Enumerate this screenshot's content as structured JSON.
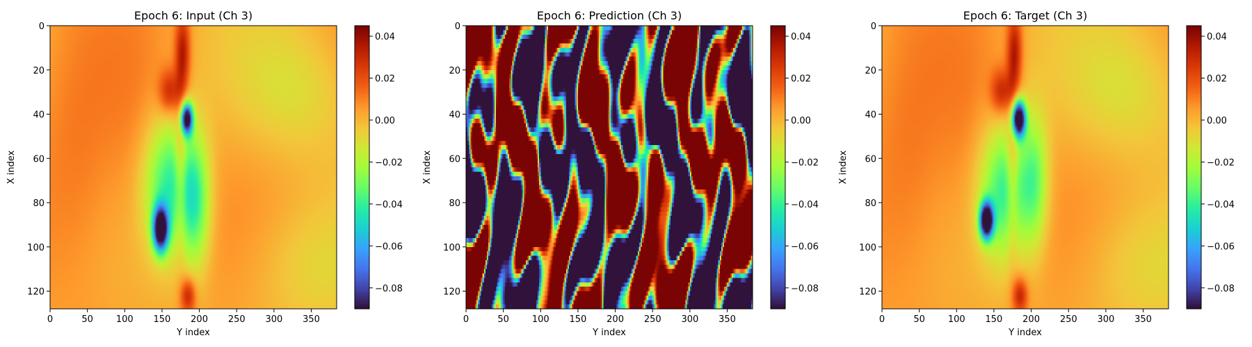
{
  "chart_data": [
    {
      "type": "heatmap",
      "title": "Epoch 6: Input (Ch 3)",
      "xlabel": "Y index",
      "ylabel": "X index",
      "xlim": [
        0,
        384
      ],
      "ylim": [
        128,
        0
      ],
      "xticks": [
        0,
        50,
        100,
        150,
        200,
        250,
        300,
        350
      ],
      "yticks": [
        0,
        20,
        40,
        60,
        80,
        100,
        120
      ],
      "colorbar": {
        "vmin": -0.09,
        "vmax": 0.045,
        "ticks": [
          0.04,
          0.02,
          0.0,
          -0.02,
          -0.04,
          -0.06,
          -0.08
        ],
        "tick_labels": [
          "0.04",
          "0.02",
          "0.00",
          "−0.02",
          "−0.04",
          "−0.06",
          "−0.08"
        ]
      },
      "colormap": "turbo",
      "field": "smooth_input"
    },
    {
      "type": "heatmap",
      "title": "Epoch 6: Prediction (Ch 3)",
      "xlabel": "Y index",
      "ylabel": "X index",
      "xlim": [
        0,
        384
      ],
      "ylim": [
        128,
        0
      ],
      "xticks": [
        0,
        50,
        100,
        150,
        200,
        250,
        300,
        350
      ],
      "yticks": [
        0,
        20,
        40,
        60,
        80,
        100,
        120
      ],
      "colorbar": {
        "vmin": -0.09,
        "vmax": 0.045,
        "ticks": [
          0.04,
          0.02,
          0.0,
          -0.02,
          -0.04,
          -0.06,
          -0.08
        ],
        "tick_labels": [
          "0.04",
          "0.02",
          "0.00",
          "−0.02",
          "−0.04",
          "−0.06",
          "−0.08"
        ]
      },
      "colormap": "turbo",
      "field": "saturated_prediction"
    },
    {
      "type": "heatmap",
      "title": "Epoch 6: Target (Ch 3)",
      "xlabel": "Y index",
      "ylabel": "X index",
      "xlim": [
        0,
        384
      ],
      "ylim": [
        128,
        0
      ],
      "xticks": [
        0,
        50,
        100,
        150,
        200,
        250,
        300,
        350
      ],
      "yticks": [
        0,
        20,
        40,
        60,
        80,
        100,
        120
      ],
      "colorbar": {
        "vmin": -0.09,
        "vmax": 0.045,
        "ticks": [
          0.04,
          0.02,
          0.0,
          -0.02,
          -0.04,
          -0.06,
          -0.08
        ],
        "tick_labels": [
          "0.04",
          "0.02",
          "0.00",
          "−0.02",
          "−0.04",
          "−0.06",
          "−0.08"
        ]
      },
      "colormap": "turbo",
      "field": "smooth_target"
    }
  ]
}
